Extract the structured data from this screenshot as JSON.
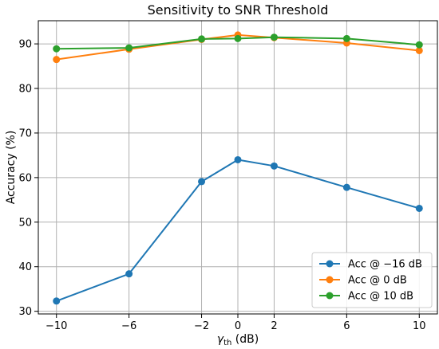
{
  "chart_data": {
    "type": "line",
    "title": "Sensitivity to SNR Threshold",
    "xlabel_symbol": "γ",
    "xlabel_subscript": "th",
    "xlabel_unit": " (dB)",
    "ylabel": "Accuracy (%)",
    "x": [
      -10,
      -6,
      -2,
      0,
      2,
      6,
      10
    ],
    "x_tick_labels": [
      "−10",
      "−6",
      "−2",
      "0",
      "2",
      "6",
      "10"
    ],
    "y_ticks": [
      30,
      40,
      50,
      60,
      70,
      80,
      90
    ],
    "y_tick_labels": [
      "30",
      "40",
      "50",
      "60",
      "70",
      "80",
      "90"
    ],
    "xlim": [
      -11,
      11
    ],
    "ylim": [
      29.4,
      95.2
    ],
    "grid": true,
    "legend_position": "lower-right",
    "series": [
      {
        "name": "Acc @ −16 dB",
        "color": "#1f77b4",
        "values": [
          32.3,
          38.4,
          59.1,
          64.0,
          62.6,
          57.8,
          53.1
        ]
      },
      {
        "name": "Acc @ 0 dB",
        "color": "#ff7f0e",
        "values": [
          86.5,
          88.8,
          91.0,
          92.0,
          91.4,
          90.2,
          88.5
        ]
      },
      {
        "name": "Acc @ 10 dB",
        "color": "#2ca02c",
        "values": [
          88.9,
          89.1,
          91.1,
          91.2,
          91.5,
          91.2,
          89.8
        ]
      }
    ]
  }
}
